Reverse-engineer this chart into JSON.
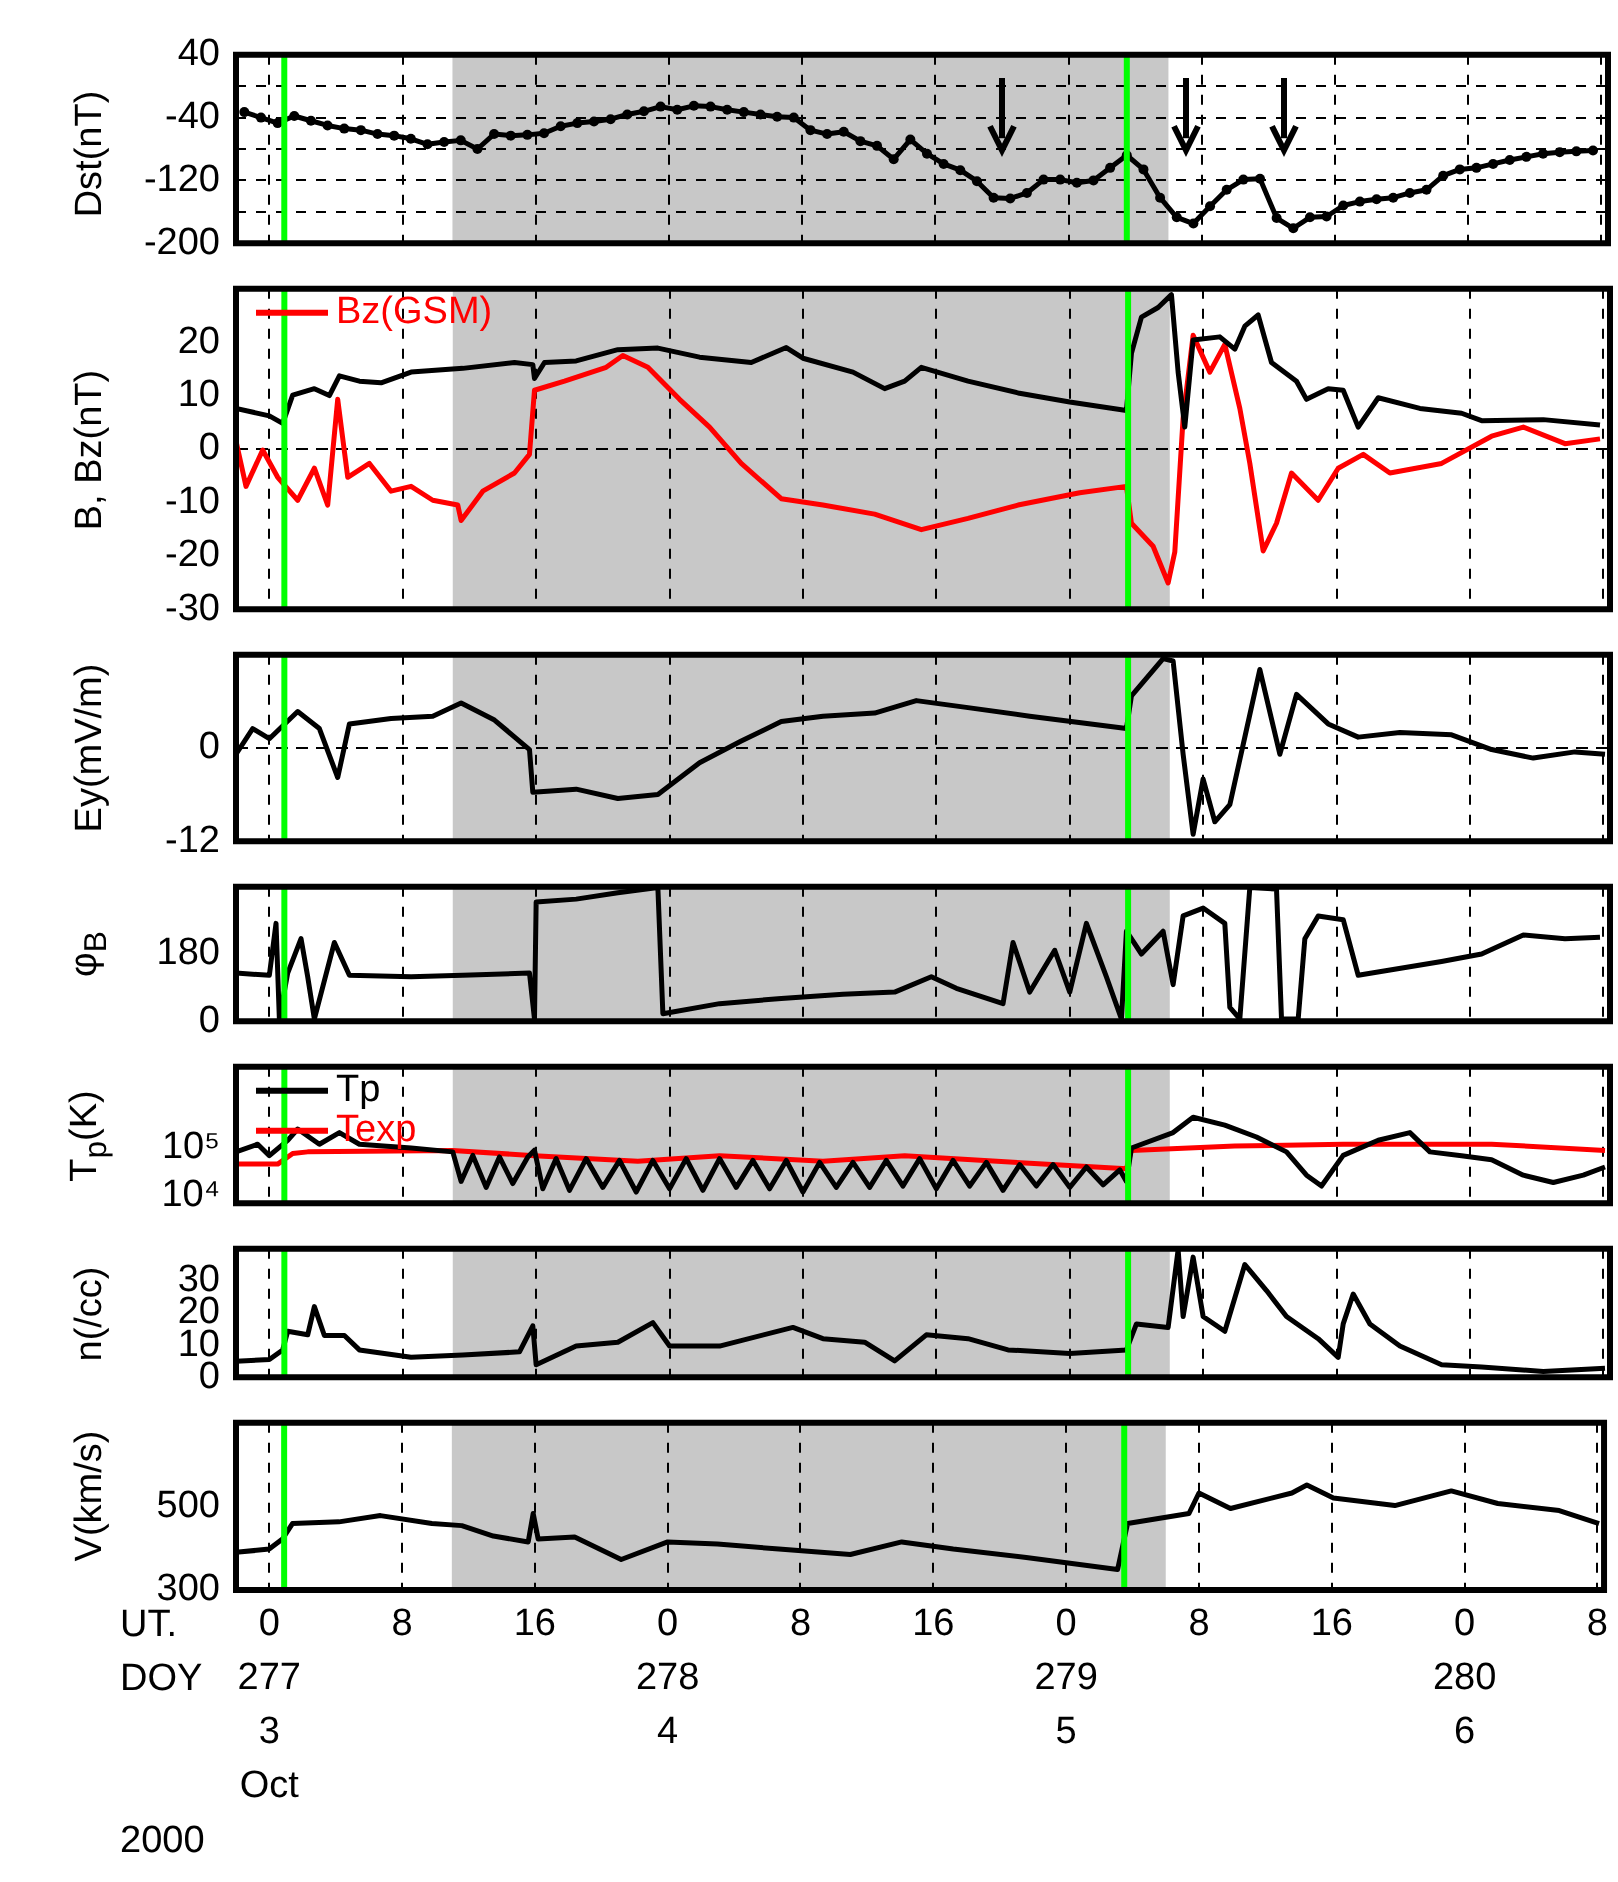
{
  "chart_data": [
    {
      "type": "line",
      "ylabel": "Dst(nT)",
      "xlim": [
        "2000-10-02T22:00",
        "2000-10-06T08:24"
      ],
      "xticks": [
        "2000-10-03T00:00",
        "2000-10-03T08:00",
        "2000-10-03T16:00",
        "2000-10-04T00:00",
        "2000-10-04T08:00",
        "2000-10-04T16:00",
        "2000-10-05T00:00",
        "2000-10-05T08:00",
        "2000-10-05T16:00",
        "2000-10-06T00:00",
        "2000-10-06T08:00"
      ],
      "ylim": [
        -200,
        40
      ],
      "yticks": [
        40,
        {
          "value": 0,
          "label": null
        },
        -40,
        {
          "value": -80,
          "label": null
        },
        -120,
        {
          "value": -160,
          "label": null
        },
        -200
      ],
      "grid": true,
      "tick_labels": "y",
      "marker": "circle",
      "bands": [
        {
          "axis": "x",
          "from": "2000-10-03T11:00",
          "to": "2000-10-05T06:00",
          "color": "#c8c8c8"
        }
      ],
      "ref_lines": [
        {
          "axis": "x",
          "value": "2000-10-03T00:54",
          "color": "#00ff00"
        },
        {
          "axis": "x",
          "value": "2000-10-05T03:30",
          "color": "#00ff00"
        }
      ],
      "series": [
        {
          "color": "#000000",
          "x": [
            "2000-10-02T22:30",
            "2000-10-02T23:30",
            "2000-10-03T00:30",
            "2000-10-03T01:30",
            "2000-10-03T02:30",
            "2000-10-03T03:30",
            "2000-10-03T04:30",
            "2000-10-03T05:30",
            "2000-10-03T06:30",
            "2000-10-03T07:30",
            "2000-10-03T08:30",
            "2000-10-03T09:30",
            "2000-10-03T10:30",
            "2000-10-03T11:30",
            "2000-10-03T12:30",
            "2000-10-03T13:30",
            "2000-10-03T14:30",
            "2000-10-03T15:30",
            "2000-10-03T16:30",
            "2000-10-03T17:30",
            "2000-10-03T18:30",
            "2000-10-03T19:30",
            "2000-10-03T20:30",
            "2000-10-03T21:30",
            "2000-10-03T22:30",
            "2000-10-03T23:30",
            "2000-10-04T00:30",
            "2000-10-04T01:30",
            "2000-10-04T02:30",
            "2000-10-04T03:30",
            "2000-10-04T04:30",
            "2000-10-04T05:30",
            "2000-10-04T06:30",
            "2000-10-04T07:30",
            "2000-10-04T08:30",
            "2000-10-04T09:30",
            "2000-10-04T10:30",
            "2000-10-04T11:30",
            "2000-10-04T12:30",
            "2000-10-04T13:30",
            "2000-10-04T14:30",
            "2000-10-04T15:30",
            "2000-10-04T16:30",
            "2000-10-04T17:30",
            "2000-10-04T18:30",
            "2000-10-04T19:30",
            "2000-10-04T20:30",
            "2000-10-04T21:30",
            "2000-10-04T22:30",
            "2000-10-04T23:30",
            "2000-10-05T00:30",
            "2000-10-05T01:30",
            "2000-10-05T02:30",
            "2000-10-05T03:30",
            "2000-10-05T04:30",
            "2000-10-05T05:30",
            "2000-10-05T06:30",
            "2000-10-05T07:30",
            "2000-10-05T08:30",
            "2000-10-05T09:30",
            "2000-10-05T10:30",
            "2000-10-05T11:30",
            "2000-10-05T12:30",
            "2000-10-05T13:30",
            "2000-10-05T14:30",
            "2000-10-05T15:30",
            "2000-10-05T16:30",
            "2000-10-05T17:30",
            "2000-10-05T18:30",
            "2000-10-05T19:30",
            "2000-10-05T20:30",
            "2000-10-05T21:30",
            "2000-10-05T22:30",
            "2000-10-05T23:30",
            "2000-10-06T00:30",
            "2000-10-06T01:30",
            "2000-10-06T02:30",
            "2000-10-06T03:30",
            "2000-10-06T04:30",
            "2000-10-06T05:30",
            "2000-10-06T06:30",
            "2000-10-06T07:30"
          ],
          "values": [
            -33,
            -40,
            -47,
            -38,
            -44,
            -50,
            -54,
            -56,
            -61,
            -63,
            -67,
            -74,
            -71,
            -69,
            -80,
            -61,
            -63,
            -62,
            -60,
            -51,
            -47,
            -45,
            -42,
            -36,
            -32,
            -26,
            -30,
            -25,
            -26,
            -30,
            -33,
            -36,
            -39,
            -40,
            -56,
            -61,
            -58,
            -70,
            -76,
            -93,
            -68,
            -86,
            -99,
            -107,
            -121,
            -142,
            -143,
            -136,
            -119,
            -119,
            -123,
            -120,
            -104,
            -88,
            -106,
            -142,
            -167,
            -175,
            -153,
            -132,
            -119,
            -118,
            -168,
            -181,
            -167,
            -166,
            -152,
            -147,
            -144,
            -142,
            -136,
            -132,
            -114,
            -106,
            -104,
            -99,
            -94,
            -90,
            -86,
            -84,
            -83,
            -82
          ]
        }
      ]
    },
    {
      "type": "line",
      "ylabel": "B, Bz(nT)",
      "xlim": [
        "2000-10-02T22:00",
        "2000-10-06T08:24"
      ],
      "xticks": [
        "2000-10-03T00:00",
        "2000-10-03T08:00",
        "2000-10-03T16:00",
        "2000-10-04T00:00",
        "2000-10-04T08:00",
        "2000-10-04T16:00",
        "2000-10-05T00:00",
        "2000-10-05T08:00",
        "2000-10-05T16:00",
        "2000-10-06T00:00",
        "2000-10-06T08:00"
      ],
      "ylim": [
        -30,
        30
      ],
      "yticks": [
        20,
        10,
        0,
        -10,
        -20,
        -30
      ],
      "grid": "x",
      "tick_labels": "y",
      "legend": "top left",
      "bands": [
        {
          "axis": "x",
          "from": "2000-10-03T11:00",
          "to": "2000-10-05T06:00",
          "color": "#c8c8c8"
        }
      ],
      "ref_lines": [
        {
          "axis": "y",
          "value": 0,
          "color": "#000000",
          "line_style": "dashed"
        },
        {
          "axis": "x",
          "value": "2000-10-03T00:54",
          "color": "#00ff00"
        },
        {
          "axis": "x",
          "value": "2000-10-05T03:30",
          "color": "#00ff00"
        }
      ],
      "series": [
        {
          "color": "#000000",
          "x": [
            "2000-10-02T22:00",
            "2000-10-03T00:00",
            "2000-10-03T00:48",
            "2000-10-03T01:24",
            "2000-10-03T02:42",
            "2000-10-03T03:36",
            "2000-10-03T04:12",
            "2000-10-03T05:24",
            "2000-10-03T06:42",
            "2000-10-03T08:30",
            "2000-10-03T11:36",
            "2000-10-03T14:42",
            "2000-10-03T15:48",
            "2000-10-03T15:54",
            "2000-10-03T16:30",
            "2000-10-03T18:24",
            "2000-10-03T20:54",
            "2000-10-03T23:18",
            "2000-10-04T01:48",
            "2000-10-04T04:54",
            "2000-10-04T07:00",
            "2000-10-04T08:00",
            "2000-10-04T11:00",
            "2000-10-04T12:54",
            "2000-10-04T14:06",
            "2000-10-04T15:06",
            "2000-10-04T17:54",
            "2000-10-04T20:54",
            "2000-10-05T00:00",
            "2000-10-05T03:24",
            "2000-10-05T03:42",
            "2000-10-05T04:18",
            "2000-10-05T05:18",
            "2000-10-05T06:06",
            "2000-10-05T06:30",
            "2000-10-05T06:54",
            "2000-10-05T07:24",
            "2000-10-05T09:00",
            "2000-10-05T09:54",
            "2000-10-05T10:30",
            "2000-10-05T11:18",
            "2000-10-05T12:06",
            "2000-10-05T13:36",
            "2000-10-05T14:12",
            "2000-10-05T15:30",
            "2000-10-05T16:24",
            "2000-10-05T17:18",
            "2000-10-05T18:30",
            "2000-10-05T21:00",
            "2000-10-05T23:30",
            "2000-10-06T00:42",
            "2000-10-06T04:24",
            "2000-10-06T07:48"
          ],
          "values": [
            7.6,
            6.2,
            4.8,
            10.1,
            11.3,
            10,
            13.7,
            12.7,
            12.4,
            14.4,
            15.1,
            16.2,
            15.8,
            13.2,
            16.2,
            16.5,
            18.6,
            18.9,
            17.2,
            16.2,
            19,
            17,
            14.4,
            11.3,
            12.7,
            15.3,
            12.7,
            10.5,
            8.8,
            7.2,
            17.9,
            24.7,
            26.5,
            28.9,
            14.4,
            4.1,
            20.4,
            21,
            18.7,
            23,
            25.1,
            16.2,
            12.7,
            9.3,
            11.3,
            11,
            4.1,
            9.6,
            7.6,
            6.7,
            5.3,
            5.5,
            4.5
          ]
        },
        {
          "name": "Bz(GSM)",
          "color": "#ff0000",
          "x": [
            "2000-10-02T22:00",
            "2000-10-02T22:36",
            "2000-10-02T23:36",
            "2000-10-03T00:30",
            "2000-10-03T01:42",
            "2000-10-03T02:42",
            "2000-10-03T03:30",
            "2000-10-03T04:06",
            "2000-10-03T04:42",
            "2000-10-03T06:00",
            "2000-10-03T07:18",
            "2000-10-03T08:30",
            "2000-10-03T09:48",
            "2000-10-03T11:18",
            "2000-10-03T11:30",
            "2000-10-03T12:48",
            "2000-10-03T14:42",
            "2000-10-03T15:36",
            "2000-10-03T15:54",
            "2000-10-03T17:42",
            "2000-10-03T20:12",
            "2000-10-03T21:12",
            "2000-10-03T22:42",
            "2000-10-04T00:36",
            "2000-10-04T02:24",
            "2000-10-04T04:18",
            "2000-10-04T06:42",
            "2000-10-04T09:12",
            "2000-10-04T12:18",
            "2000-10-04T15:06",
            "2000-10-04T17:54",
            "2000-10-04T20:54",
            "2000-10-05T00:36",
            "2000-10-05T03:24",
            "2000-10-05T03:42",
            "2000-10-05T05:00",
            "2000-10-05T05:54",
            "2000-10-05T06:18",
            "2000-10-05T06:48",
            "2000-10-05T07:24",
            "2000-10-05T08:24",
            "2000-10-05T09:18",
            "2000-10-05T10:12",
            "2000-10-05T10:48",
            "2000-10-05T11:36",
            "2000-10-05T12:24",
            "2000-10-05T13:18",
            "2000-10-05T14:54",
            "2000-10-05T16:06",
            "2000-10-05T17:36",
            "2000-10-05T19:12",
            "2000-10-05T22:18",
            "2000-10-06T01:18",
            "2000-10-06T03:12",
            "2000-10-06T05:42",
            "2000-10-06T07:48"
          ],
          "values": [
            1.5,
            -7,
            -0.2,
            -5.3,
            -9.6,
            -3.6,
            -10.5,
            9.3,
            -5.3,
            -2.7,
            -7.9,
            -7,
            -9.6,
            -10.5,
            -13.4,
            -7.9,
            -4.5,
            -1,
            11,
            12.7,
            15.3,
            17.5,
            15.3,
            9.3,
            4.1,
            -2.7,
            -9.3,
            -10.5,
            -12.2,
            -15.1,
            -13,
            -10.5,
            -8.2,
            -7,
            -13.9,
            -18.2,
            -25.1,
            -19.3,
            5.8,
            21.3,
            14.4,
            19.6,
            7.6,
            -2.7,
            -19.1,
            -13.9,
            -4.5,
            -9.6,
            -3.6,
            -1,
            -4.5,
            -2.7,
            2.4,
            4.1,
            1,
            1.9
          ]
        }
      ]
    },
    {
      "type": "line",
      "ylabel": "Ey(mV/m)",
      "xlim": [
        "2000-10-02T22:00",
        "2000-10-06T08:24"
      ],
      "xticks": [
        "2000-10-03T00:00",
        "2000-10-03T08:00",
        "2000-10-03T16:00",
        "2000-10-04T00:00",
        "2000-10-04T08:00",
        "2000-10-04T16:00",
        "2000-10-05T00:00",
        "2000-10-05T08:00",
        "2000-10-05T16:00",
        "2000-10-06T00:00",
        "2000-10-06T08:00"
      ],
      "ylim": [
        -12,
        12
      ],
      "yticks": [
        0,
        -12
      ],
      "grid": "x",
      "tick_labels": "y",
      "bands": [
        {
          "axis": "x",
          "from": "2000-10-03T11:00",
          "to": "2000-10-05T06:00",
          "color": "#c8c8c8"
        }
      ],
      "ref_lines": [
        {
          "axis": "y",
          "value": 0,
          "color": "#000000",
          "line_style": "dashed"
        },
        {
          "axis": "x",
          "value": "2000-10-03T00:54",
          "color": "#00ff00"
        },
        {
          "axis": "x",
          "value": "2000-10-05T03:30",
          "color": "#00ff00"
        }
      ],
      "series": [
        {
          "color": "#000000",
          "x": [
            "2000-10-02T22:00",
            "2000-10-02T23:00",
            "2000-10-03T00:00",
            "2000-10-03T01:42",
            "2000-10-03T03:00",
            "2000-10-03T04:06",
            "2000-10-03T04:48",
            "2000-10-03T07:18",
            "2000-10-03T09:48",
            "2000-10-03T11:30",
            "2000-10-03T13:30",
            "2000-10-03T15:36",
            "2000-10-03T15:48",
            "2000-10-03T18:24",
            "2000-10-03T20:54",
            "2000-10-03T23:18",
            "2000-10-04T01:48",
            "2000-10-04T04:18",
            "2000-10-04T06:42",
            "2000-10-04T09:12",
            "2000-10-04T12:18",
            "2000-10-04T14:48",
            "2000-10-04T17:54",
            "2000-10-04T21:36",
            "2000-10-05T03:24",
            "2000-10-05T03:42",
            "2000-10-05T05:36",
            "2000-10-05T06:12",
            "2000-10-05T06:48",
            "2000-10-05T07:24",
            "2000-10-05T08:00",
            "2000-10-05T08:42",
            "2000-10-05T09:36",
            "2000-10-05T10:30",
            "2000-10-05T11:24",
            "2000-10-05T12:36",
            "2000-10-05T13:36",
            "2000-10-05T15:30",
            "2000-10-05T17:18",
            "2000-10-05T19:48",
            "2000-10-05T22:54",
            "2000-10-06T01:18",
            "2000-10-06T03:48",
            "2000-10-06T06:18",
            "2000-10-06T08:06"
          ],
          "values": [
            -0.8,
            2.5,
            1.2,
            4.7,
            2.5,
            -3.8,
            3.1,
            3.8,
            4.1,
            5.8,
            3.6,
            -0.2,
            -5.7,
            -5.3,
            -6.5,
            -6,
            -1.9,
            0.9,
            3.4,
            4.1,
            4.5,
            6.1,
            5.2,
            4.1,
            2.5,
            6.7,
            11.5,
            11.2,
            -0.8,
            -11.1,
            -4,
            -9.5,
            -7.3,
            1.4,
            10.1,
            -0.8,
            6.9,
            3.1,
            1.4,
            2,
            1.7,
            -0.2,
            -1.3,
            -0.5,
            -0.8
          ]
        }
      ]
    },
    {
      "type": "line",
      "ylabel": "φ$_{B}$",
      "xlim": [
        "2000-10-02T22:00",
        "2000-10-06T08:24"
      ],
      "xticks": [
        "2000-10-03T00:00",
        "2000-10-03T08:00",
        "2000-10-03T16:00",
        "2000-10-04T00:00",
        "2000-10-04T08:00",
        "2000-10-04T16:00",
        "2000-10-05T00:00",
        "2000-10-05T08:00",
        "2000-10-05T16:00",
        "2000-10-06T00:00",
        "2000-10-06T08:00"
      ],
      "ylim": [
        0,
        360
      ],
      "yticks": [
        180,
        0
      ],
      "grid": "x",
      "tick_labels": "y",
      "bands": [
        {
          "axis": "x",
          "from": "2000-10-03T11:00",
          "to": "2000-10-05T06:00",
          "color": "#c8c8c8"
        }
      ],
      "ref_lines": [
        {
          "axis": "x",
          "value": "2000-10-03T00:54",
          "color": "#00ff00"
        },
        {
          "axis": "x",
          "value": "2000-10-05T03:30",
          "color": "#00ff00"
        }
      ],
      "series": [
        {
          "color": "#000000",
          "x": [
            "2000-10-02T22:00",
            "2000-10-03T00:00",
            "2000-10-03T00:24",
            "2000-10-03T00:36",
            "2000-10-03T01:06",
            "2000-10-03T01:54",
            "2000-10-03T02:18",
            "2000-10-03T02:42",
            "2000-10-03T03:54",
            "2000-10-03T04:48",
            "2000-10-03T08:30",
            "2000-10-03T11:36",
            "2000-10-03T15:36",
            "2000-10-03T15:54",
            "2000-10-03T16:00",
            "2000-10-03T18:24",
            "2000-10-03T20:54",
            "2000-10-03T23:18",
            "2000-10-03T23:36",
            "2000-10-04T03:00",
            "2000-10-04T06:42",
            "2000-10-04T10:24",
            "2000-10-04T13:30",
            "2000-10-04T15:42",
            "2000-10-04T17:12",
            "2000-10-04T20:00",
            "2000-10-04T20:36",
            "2000-10-04T21:36",
            "2000-10-04T23:06",
            "2000-10-05T00:00",
            "2000-10-05T01:00",
            "2000-10-05T02:12",
            "2000-10-05T03:06",
            "2000-10-05T03:24",
            "2000-10-05T04:18",
            "2000-10-05T05:36",
            "2000-10-05T06:12",
            "2000-10-05T06:48",
            "2000-10-05T08:00",
            "2000-10-05T09:18",
            "2000-10-05T09:36",
            "2000-10-05T10:12",
            "2000-10-05T10:48",
            "2000-10-05T12:24",
            "2000-10-05T12:42",
            "2000-10-05T13:42",
            "2000-10-05T14:06",
            "2000-10-05T14:54",
            "2000-10-05T16:24",
            "2000-10-05T17:18",
            "2000-10-05T22:18",
            "2000-10-06T00:42",
            "2000-10-06T03:12",
            "2000-10-06T05:42",
            "2000-10-06T07:48"
          ],
          "values": [
            129,
            123,
            262,
            6,
            129,
            221,
            119,
            6,
            211,
            123,
            119,
            123,
            129,
            6,
            319,
            327,
            344,
            358,
            20,
            47,
            61,
            72,
            78,
            119,
            88,
            47,
            211,
            78,
            190,
            78,
            262,
            119,
            6,
            241,
            180,
            241,
            98,
            282,
            303,
            262,
            37,
            6,
            358,
            354,
            6,
            6,
            221,
            282,
            272,
            123,
            160,
            180,
            231,
            221,
            225
          ]
        }
      ]
    },
    {
      "type": "line",
      "ylabel": "T$_{p}$(K)",
      "xlim": [
        "2000-10-02T22:00",
        "2000-10-06T08:24"
      ],
      "xticks": [
        "2000-10-03T00:00",
        "2000-10-03T08:00",
        "2000-10-03T16:00",
        "2000-10-04T00:00",
        "2000-10-04T08:00",
        "2000-10-04T16:00",
        "2000-10-05T00:00",
        "2000-10-05T08:00",
        "2000-10-05T16:00",
        "2000-10-06T00:00",
        "2000-10-06T08:00"
      ],
      "ylim": [
        7000,
        5000000
      ],
      "yticks": [
        {
          "value": 100000,
          "label": "10⁵"
        },
        {
          "value": 10000,
          "label": "10⁴"
        }
      ],
      "log": true,
      "grid": "x",
      "tick_labels": "y",
      "legend": "top left",
      "bands": [
        {
          "axis": "x",
          "from": "2000-10-03T11:00",
          "to": "2000-10-05T06:00",
          "color": "#c8c8c8"
        }
      ],
      "ref_lines": [
        {
          "axis": "x",
          "value": "2000-10-03T00:54",
          "color": "#00ff00"
        },
        {
          "axis": "x",
          "value": "2000-10-05T03:30",
          "color": "#00ff00"
        }
      ],
      "series": [
        {
          "name": "Tp",
          "color": "#000000",
          "x": [
            "2000-10-02T22:00",
            "2000-10-02T23:18",
            "2000-10-03T00:00",
            "2000-10-03T01:06",
            "2000-10-03T01:42",
            "2000-10-03T03:00",
            "2000-10-03T04:12",
            "2000-10-03T05:24",
            "2000-10-03T08:30",
            "2000-10-03T11:00",
            "2000-10-03T11:30",
            "2000-10-03T12:12",
            "2000-10-03T13:00",
            "2000-10-03T13:48",
            "2000-10-03T14:36",
            "2000-10-03T15:30",
            "2000-10-03T15:54",
            "2000-10-03T16:24",
            "2000-10-03T17:12",
            "2000-10-03T18:00",
            "2000-10-03T19:00",
            "2000-10-03T20:00",
            "2000-10-03T21:00",
            "2000-10-03T22:00",
            "2000-10-03T23:00",
            "2000-10-04T00:00",
            "2000-10-04T01:00",
            "2000-10-04T02:00",
            "2000-10-04T03:00",
            "2000-10-04T04:00",
            "2000-10-04T05:00",
            "2000-10-04T06:00",
            "2000-10-04T07:00",
            "2000-10-04T08:00",
            "2000-10-04T09:00",
            "2000-10-04T10:00",
            "2000-10-04T11:00",
            "2000-10-04T12:00",
            "2000-10-04T13:00",
            "2000-10-04T14:00",
            "2000-10-04T15:00",
            "2000-10-04T16:00",
            "2000-10-04T17:00",
            "2000-10-04T18:00",
            "2000-10-04T19:00",
            "2000-10-04T20:00",
            "2000-10-04T21:00",
            "2000-10-04T22:00",
            "2000-10-04T23:00",
            "2000-10-05T00:00",
            "2000-10-05T01:00",
            "2000-10-05T02:00",
            "2000-10-05T03:00",
            "2000-10-05T03:24",
            "2000-10-05T03:42",
            "2000-10-05T06:12",
            "2000-10-05T07:24",
            "2000-10-05T09:18",
            "2000-10-05T11:12",
            "2000-10-05T13:00",
            "2000-10-05T14:12",
            "2000-10-05T15:06",
            "2000-10-05T16:24",
            "2000-10-05T18:30",
            "2000-10-05T20:24",
            "2000-10-05T21:36",
            "2000-10-05T23:30",
            "2000-10-06T01:18",
            "2000-10-06T03:12",
            "2000-10-06T05:00",
            "2000-10-06T06:48",
            "2000-10-06T08:06"
          ],
          "values": [
            83000,
            120000,
            69000,
            145000,
            250000,
            120000,
            210000,
            120000,
            100000,
            83000,
            20000,
            70000,
            15000,
            65000,
            18000,
            65000,
            90000,
            14000,
            60000,
            13000,
            60000,
            15000,
            55000,
            12000,
            55000,
            14000,
            60000,
            13000,
            60000,
            15000,
            55000,
            14000,
            55000,
            12000,
            50000,
            15000,
            50000,
            15000,
            55000,
            16000,
            60000,
            14000,
            55000,
            16000,
            50000,
            13000,
            45000,
            16000,
            45000,
            15000,
            40000,
            17000,
            35000,
            20000,
            100000,
            210000,
            440000,
            300000,
            170000,
            83000,
            27000,
            16000,
            70000,
            145000,
            210000,
            83000,
            69000,
            57000,
            27000,
            19000,
            27000,
            40000
          ]
        },
        {
          "name": "Texp",
          "color": "#ff0000",
          "x": [
            "2000-10-02T22:00",
            "2000-10-03T00:30",
            "2000-10-03T01:24",
            "2000-10-03T02:18",
            "2000-10-03T11:00",
            "2000-10-03T15:54",
            "2000-10-03T22:06",
            "2000-10-04T03:00",
            "2000-10-04T09:12",
            "2000-10-04T14:06",
            "2000-10-04T21:36",
            "2000-10-05T03:24",
            "2000-10-05T03:42",
            "2000-10-05T09:54",
            "2000-10-05T16:24",
            "2000-10-06T01:18",
            "2000-10-06T08:06"
          ],
          "values": [
            46000,
            46000,
            77000,
            83000,
            89000,
            69000,
            53000,
            69000,
            53000,
            69000,
            48000,
            37000,
            89000,
            110000,
            120000,
            120000,
            89000
          ]
        }
      ]
    },
    {
      "type": "line",
      "ylabel": "n(/cc)",
      "xlim": [
        "2000-10-02T22:00",
        "2000-10-06T08:24"
      ],
      "xticks": [
        "2000-10-03T00:00",
        "2000-10-03T08:00",
        "2000-10-03T16:00",
        "2000-10-04T00:00",
        "2000-10-04T08:00",
        "2000-10-04T16:00",
        "2000-10-05T00:00",
        "2000-10-05T08:00",
        "2000-10-05T16:00",
        "2000-10-06T00:00",
        "2000-10-06T08:00"
      ],
      "ylim": [
        0,
        40
      ],
      "yticks": [
        30,
        20,
        10,
        0
      ],
      "grid": "x",
      "tick_labels": "y",
      "bands": [
        {
          "axis": "x",
          "from": "2000-10-03T11:00",
          "to": "2000-10-05T06:00",
          "color": "#c8c8c8"
        }
      ],
      "ref_lines": [
        {
          "axis": "x",
          "value": "2000-10-03T00:54",
          "color": "#00ff00"
        },
        {
          "axis": "x",
          "value": "2000-10-05T03:30",
          "color": "#00ff00"
        }
      ],
      "series": [
        {
          "color": "#000000",
          "x": [
            "2000-10-02T22:00",
            "2000-10-03T00:00",
            "2000-10-03T00:48",
            "2000-10-03T01:06",
            "2000-10-03T02:18",
            "2000-10-03T02:42",
            "2000-10-03T03:18",
            "2000-10-03T04:30",
            "2000-10-03T05:24",
            "2000-10-03T08:30",
            "2000-10-03T11:36",
            "2000-10-03T15:00",
            "2000-10-03T15:48",
            "2000-10-03T16:00",
            "2000-10-03T18:24",
            "2000-10-03T20:54",
            "2000-10-03T23:00",
            "2000-10-04T00:00",
            "2000-10-04T03:00",
            "2000-10-04T07:24",
            "2000-10-04T09:12",
            "2000-10-04T11:42",
            "2000-10-04T13:30",
            "2000-10-04T15:24",
            "2000-10-04T17:54",
            "2000-10-04T20:18",
            "2000-10-05T00:00",
            "2000-10-05T03:24",
            "2000-10-05T04:00",
            "2000-10-05T05:54",
            "2000-10-05T06:30",
            "2000-10-05T06:48",
            "2000-10-05T07:24",
            "2000-10-05T08:00",
            "2000-10-05T09:18",
            "2000-10-05T10:30",
            "2000-10-05T11:48",
            "2000-10-05T13:00",
            "2000-10-05T14:54",
            "2000-10-05T16:06",
            "2000-10-05T16:24",
            "2000-10-05T17:00",
            "2000-10-05T18:00",
            "2000-10-05T19:48",
            "2000-10-05T22:18",
            "2000-10-06T00:42",
            "2000-10-06T04:24",
            "2000-10-06T08:06"
          ],
          "values": [
            5,
            5.5,
            8.5,
            14.3,
            13.2,
            22,
            13,
            13,
            8.5,
            6.2,
            6.9,
            7.9,
            16,
            3.9,
            9.7,
            10.9,
            17,
            9.7,
            9.7,
            15.5,
            12,
            10.9,
            5.1,
            13.2,
            12,
            8.5,
            7.4,
            8.5,
            16.6,
            15.5,
            39.7,
            18.9,
            37.4,
            18.9,
            14.3,
            35.1,
            27,
            18.9,
            12,
            6.2,
            16.6,
            25.9,
            16.6,
            9.7,
            3.9,
            3.2,
            1.8,
            2.8
          ]
        }
      ]
    },
    {
      "type": "line",
      "ylabel": "V(km/s)",
      "xlim": [
        "2000-10-02T22:00",
        "2000-10-06T08:24"
      ],
      "xticks": [
        {
          "value": "2000-10-03T00:00",
          "label": "0\n277\n3\nOct"
        },
        {
          "value": "2000-10-03T08:00",
          "label": "8"
        },
        {
          "value": "2000-10-03T16:00",
          "label": "16"
        },
        {
          "value": "2000-10-04T00:00",
          "label": "0\n278\n4"
        },
        {
          "value": "2000-10-04T08:00",
          "label": "8"
        },
        {
          "value": "2000-10-04T16:00",
          "label": "16"
        },
        {
          "value": "2000-10-05T00:00",
          "label": "0\n279\n5"
        },
        {
          "value": "2000-10-05T08:00",
          "label": "8"
        },
        {
          "value": "2000-10-05T16:00",
          "label": "16"
        },
        {
          "value": "2000-10-06T00:00",
          "label": "0\n280\n6"
        },
        {
          "value": "2000-10-06T08:00",
          "label": "8"
        }
      ],
      "ylim": [
        300,
        700
      ],
      "yticks": [
        500,
        300
      ],
      "grid": "x",
      "bands": [
        {
          "axis": "x",
          "from": "2000-10-03T11:00",
          "to": "2000-10-05T06:00",
          "color": "#c8c8c8"
        }
      ],
      "ref_lines": [
        {
          "axis": "x",
          "value": "2000-10-03T00:54",
          "color": "#00ff00"
        },
        {
          "axis": "x",
          "value": "2000-10-05T03:30",
          "color": "#00ff00"
        }
      ],
      "annotations": [
        "UT.",
        "DOY",
        "2000"
      ],
      "series": [
        {
          "color": "#000000",
          "x": [
            "2000-10-02T22:00",
            "2000-10-03T00:00",
            "2000-10-03T00:48",
            "2000-10-03T01:24",
            "2000-10-03T04:12",
            "2000-10-03T06:42",
            "2000-10-03T09:48",
            "2000-10-03T11:36",
            "2000-10-03T13:30",
            "2000-10-03T15:36",
            "2000-10-03T15:54",
            "2000-10-03T16:12",
            "2000-10-03T18:24",
            "2000-10-03T21:12",
            "2000-10-04T00:00",
            "2000-10-04T03:00",
            "2000-10-04T06:42",
            "2000-10-04T11:00",
            "2000-10-04T14:06",
            "2000-10-04T17:12",
            "2000-10-04T21:36",
            "2000-10-05T03:06",
            "2000-10-05T03:42",
            "2000-10-05T07:24",
            "2000-10-05T08:00",
            "2000-10-05T09:54",
            "2000-10-05T13:36",
            "2000-10-05T14:30",
            "2000-10-05T16:06",
            "2000-10-05T19:48",
            "2000-10-05T23:12",
            "2000-10-06T02:00",
            "2000-10-06T05:42",
            "2000-10-06T08:06"
          ],
          "values": [
            390,
            398,
            422,
            459,
            463,
            478,
            459,
            454,
            429,
            415,
            483,
            422,
            427,
            373,
            415,
            410,
            398,
            385,
            415,
            398,
            378,
            349,
            459,
            483,
            532,
            495,
            532,
            551,
            520,
            502,
            537,
            507,
            490,
            459
          ]
        }
      ]
    }
  ]
}
